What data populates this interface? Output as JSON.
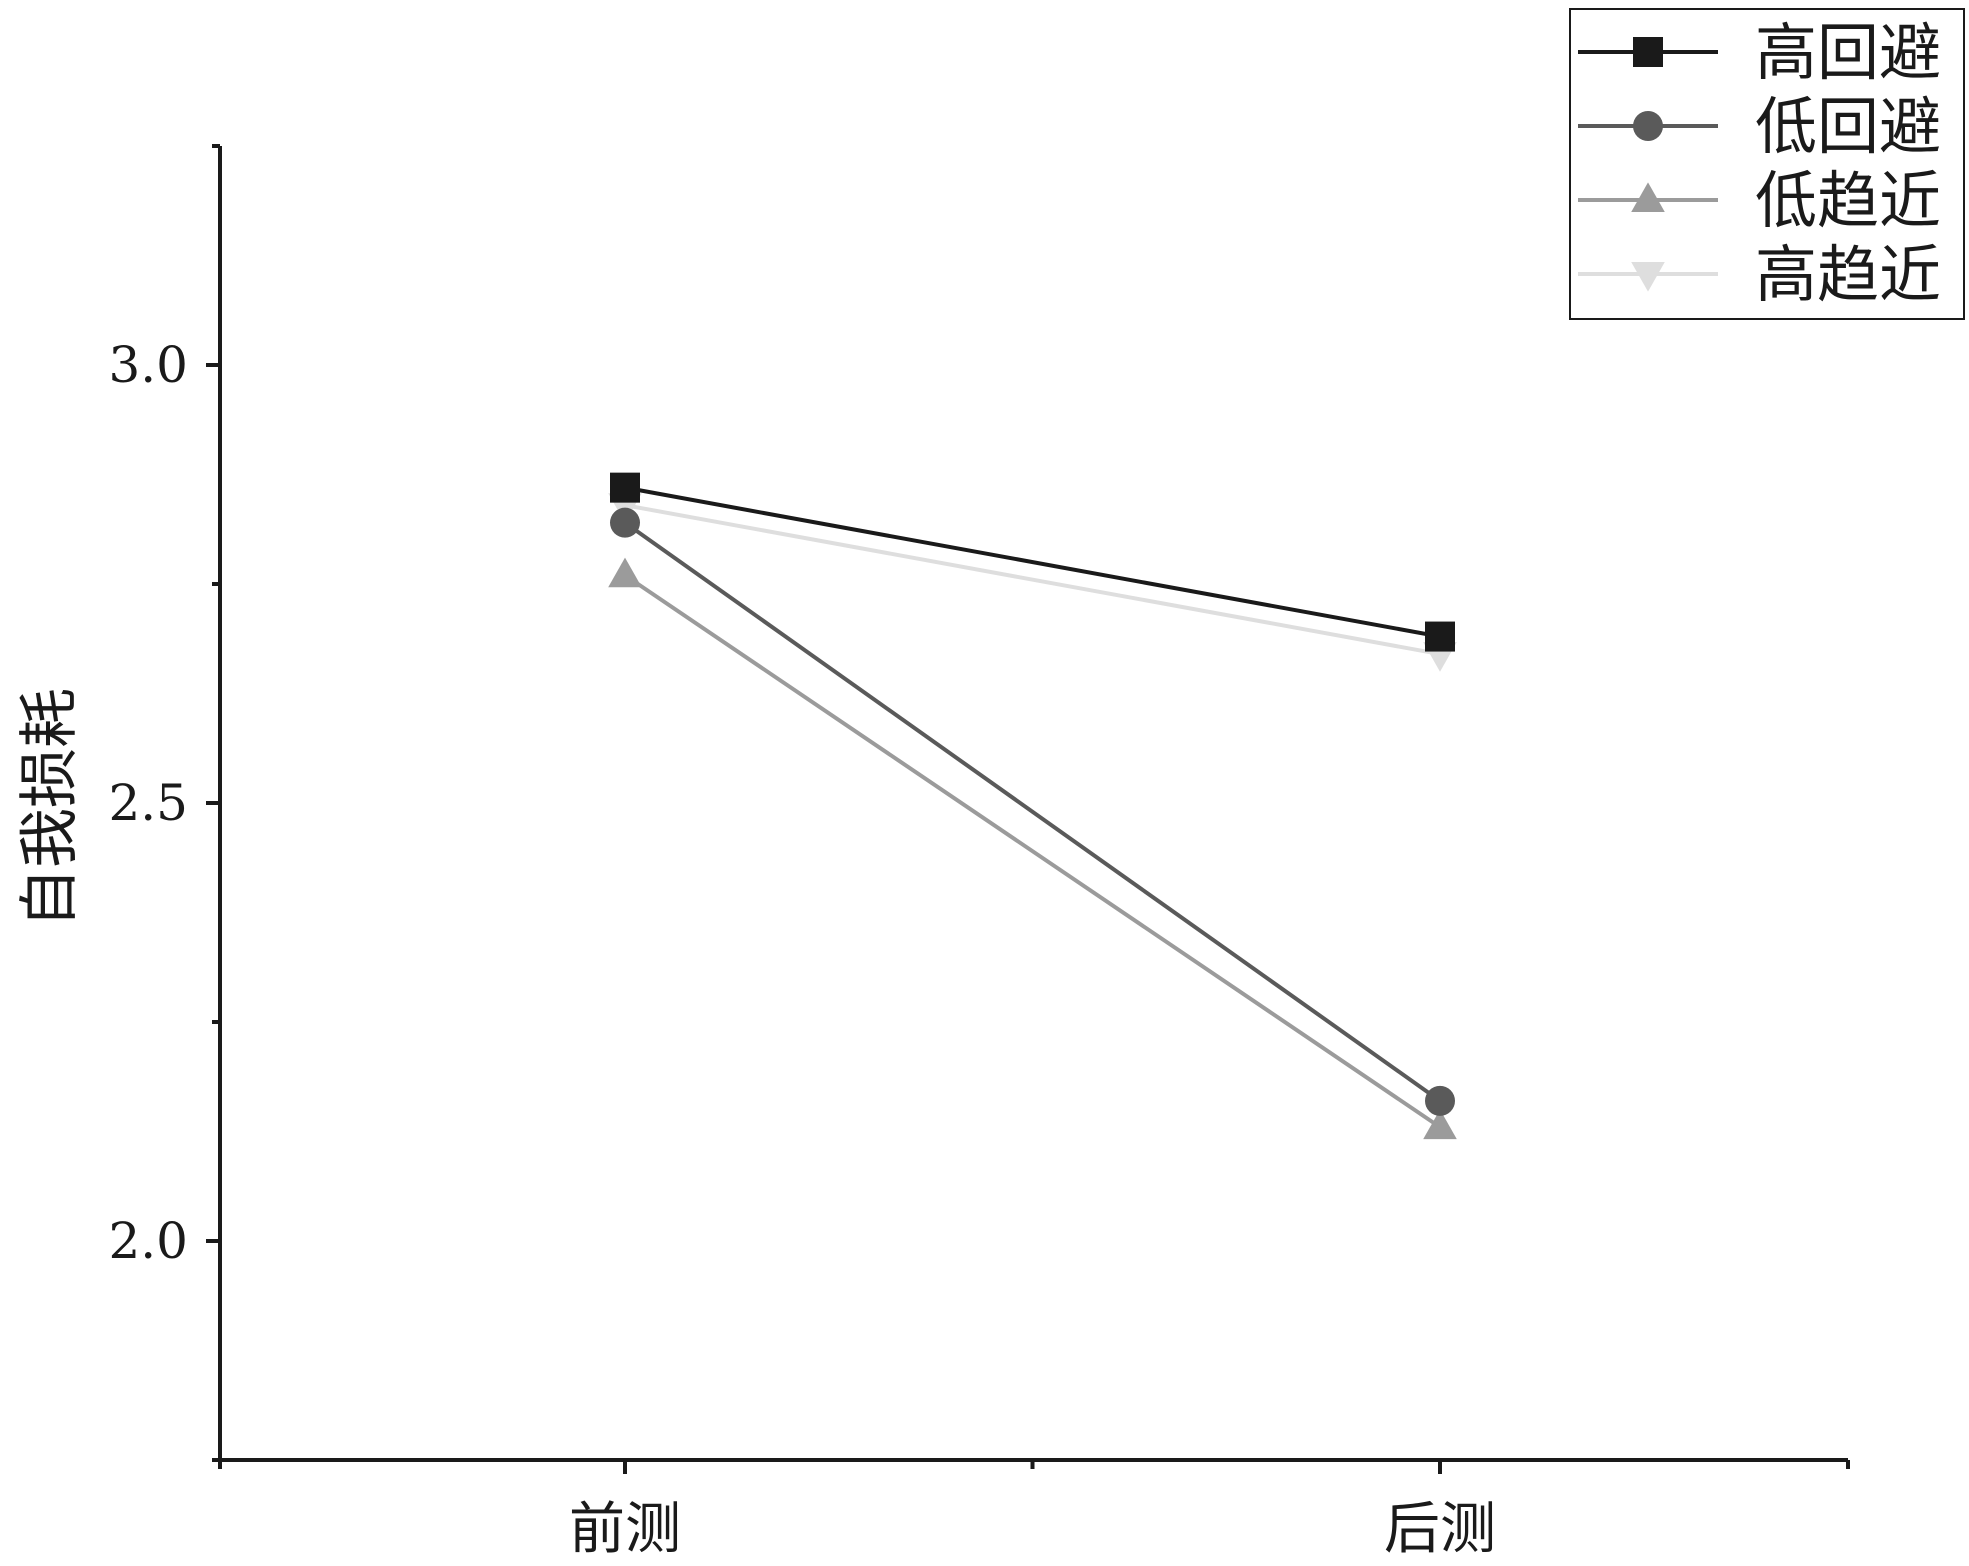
{
  "chart_data": {
    "type": "line",
    "title": "",
    "xlabel": "",
    "ylabel": "自我损耗",
    "categories": [
      "前测",
      "后测"
    ],
    "ylim": [
      1.75,
      3.25
    ],
    "yticks": [
      "2.0",
      "2.5",
      "3.0"
    ],
    "ytick_values": [
      2.0,
      2.5,
      3.0
    ],
    "grid": false,
    "legend_position": "top-right",
    "series": [
      {
        "name": "高回避",
        "values": [
          2.86,
          2.69
        ],
        "marker": "square",
        "color": "#1a1a1a"
      },
      {
        "name": "低回避",
        "values": [
          2.82,
          2.16
        ],
        "marker": "circle",
        "color": "#5a5a5a"
      },
      {
        "name": "低趋近",
        "values": [
          2.76,
          2.13
        ],
        "marker": "triangle-up",
        "color": "#9b9b9b"
      },
      {
        "name": "高趋近",
        "values": [
          2.84,
          2.67
        ],
        "marker": "triangle-down",
        "color": "#dedede"
      }
    ]
  }
}
